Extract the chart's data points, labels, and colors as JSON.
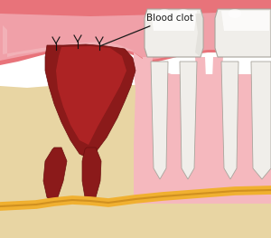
{
  "bg_color": "#ffffff",
  "bone_color": "#e8d5a3",
  "gum_outer_color": "#e8737a",
  "gum_inner_color": "#f0a0a8",
  "gum_highlight": "#f5c0c5",
  "blood_clot_color": "#8b1a1a",
  "blood_clot_dark": "#6b0f0f",
  "blood_clot_fill": "#c0282a",
  "tooth_white": "#f0eeea",
  "tooth_highlight": "#ffffff",
  "tooth_shadow": "#d0cdc5",
  "gum_tissue_color": "#f5b8be",
  "nerve_color": "#f0b030",
  "nerve_dark": "#d09020",
  "label_text": "Blood clot",
  "label_fontsize": 7.5,
  "annotation_color": "#1a1a1a"
}
